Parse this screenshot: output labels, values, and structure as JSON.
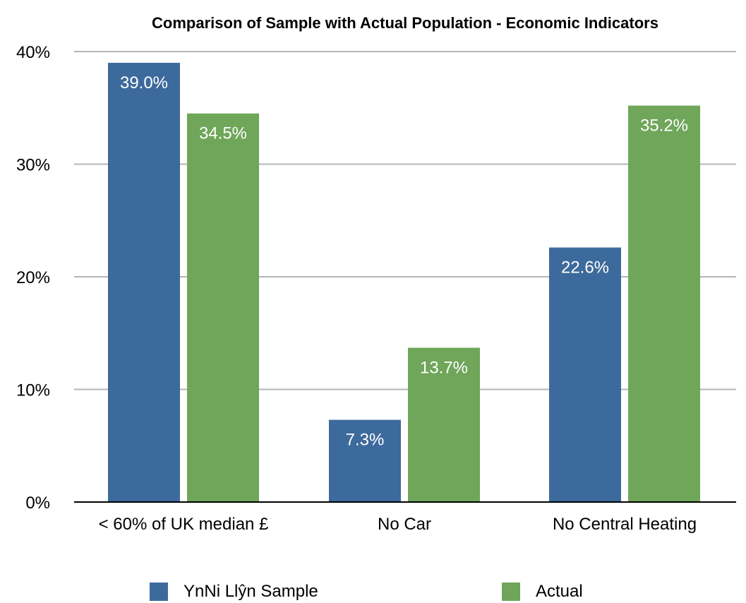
{
  "chart_data": {
    "type": "bar",
    "title": "Comparison of Sample with Actual Population - Economic Indicators",
    "xlabel": "",
    "ylabel": "",
    "categories": [
      "< 60% of UK median £",
      "No Car",
      "No Central Heating"
    ],
    "series": [
      {
        "name": "YnNi Llŷn Sample",
        "color": "#3d6a9c",
        "values": [
          39.0,
          7.3,
          22.6
        ],
        "labels": [
          "39.0%",
          "7.3%",
          "22.6%"
        ]
      },
      {
        "name": "Actual",
        "color": "#6fa65a",
        "values": [
          34.5,
          13.7,
          35.2
        ],
        "labels": [
          "34.5%",
          "13.7%",
          "35.2%"
        ]
      }
    ],
    "ylim": [
      0,
      40
    ],
    "yticks": [
      0,
      10,
      20,
      30,
      40
    ],
    "ytick_labels": [
      "0%",
      "10%",
      "20%",
      "30%",
      "40%"
    ],
    "grid": true,
    "legend_position": "bottom",
    "gridline_color": "#b5b5b5",
    "axis_color": "#000000"
  }
}
